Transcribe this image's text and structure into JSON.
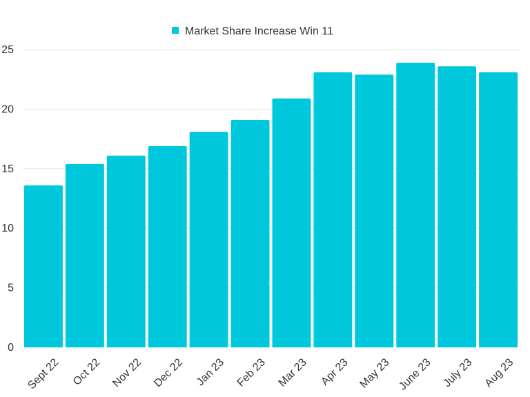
{
  "chart_data": {
    "type": "bar",
    "categories": [
      "Sept 22",
      "Oct 22",
      "Nov 22",
      "Dec 22",
      "Jan 23",
      "Feb 23",
      "Mar 23",
      "Apr 23",
      "May 23",
      "June 23",
      "July 23",
      "Aug 23"
    ],
    "series": [
      {
        "name": "Market Share Increase Win 11",
        "color": "#00c8dc",
        "values": [
          13.6,
          15.4,
          16.1,
          16.9,
          18.1,
          19.1,
          20.9,
          23.1,
          22.9,
          23.9,
          23.6,
          23.1
        ]
      }
    ],
    "title": "",
    "xlabel": "",
    "ylabel": "",
    "ylim": [
      0,
      25
    ],
    "yticks": [
      0,
      5,
      10,
      15,
      20,
      25
    ],
    "grid": true,
    "legend": "top-center"
  }
}
